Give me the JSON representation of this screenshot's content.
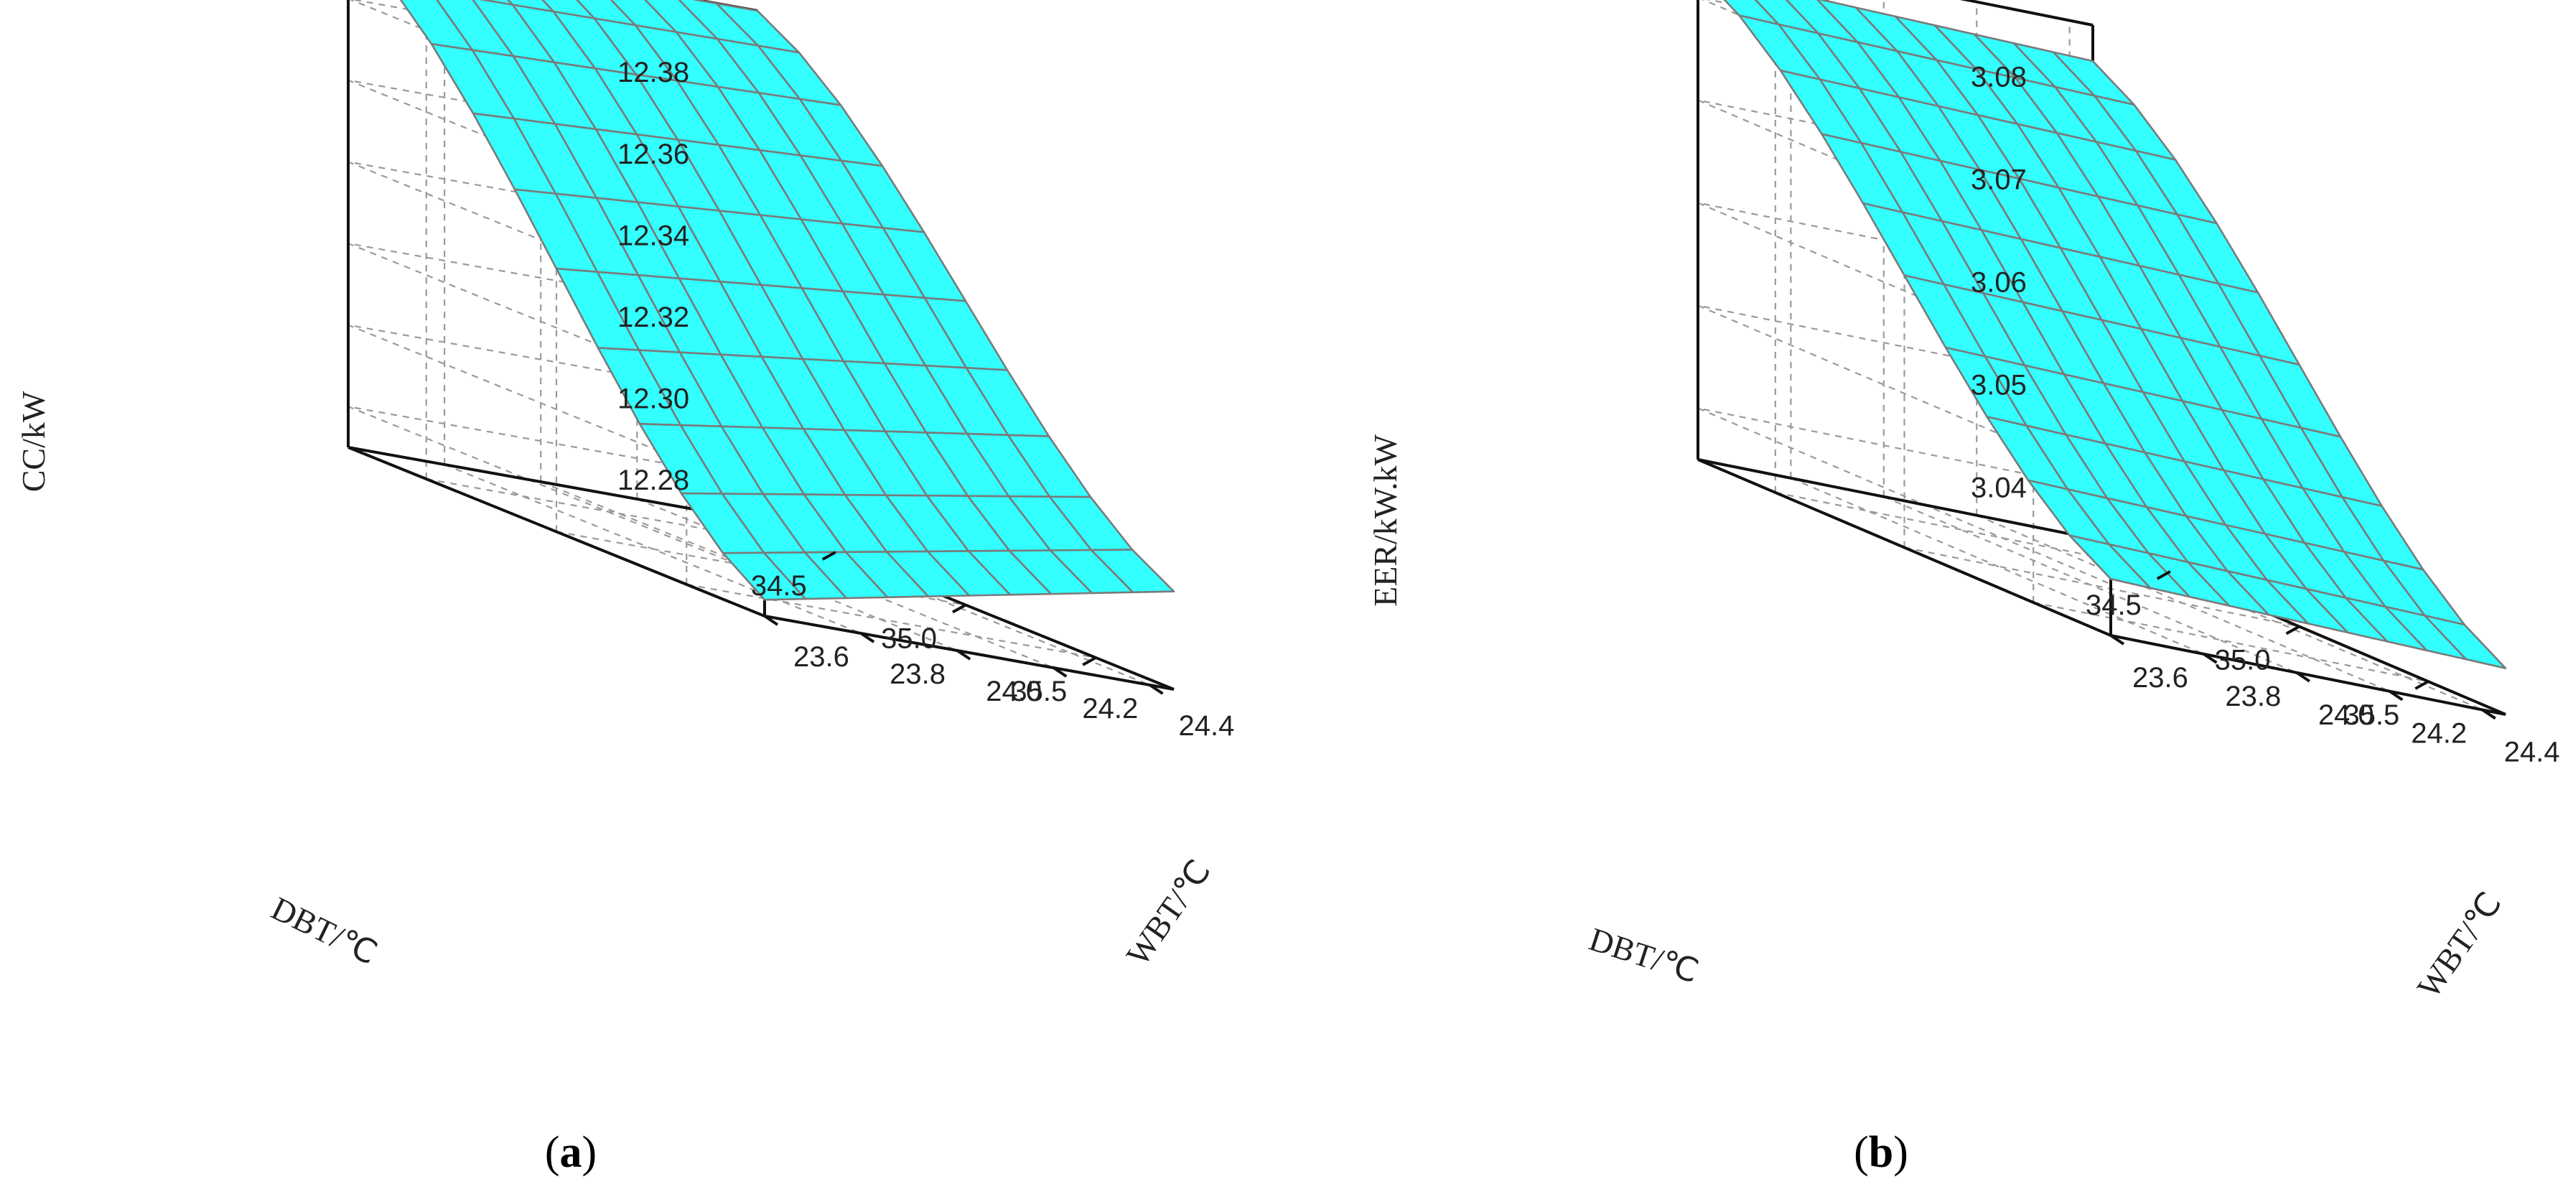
{
  "chart_data": [
    {
      "type": "surface",
      "panel_label": "a",
      "x_axis": {
        "label": "DBT/℃",
        "ticks": [
          "34.5",
          "35.0",
          "35.5"
        ],
        "range": [
          34.2,
          35.8
        ]
      },
      "y_axis": {
        "label": "WBT/℃",
        "ticks": [
          "23.6",
          "23.8",
          "24.0",
          "24.2",
          "24.4"
        ],
        "range": [
          23.6,
          24.45
        ]
      },
      "z_axis": {
        "label": "CC/kW",
        "ticks": [
          "12.28",
          "12.30",
          "12.32",
          "12.34",
          "12.36",
          "12.38"
        ],
        "range": [
          12.27,
          12.395
        ]
      },
      "grid": true,
      "surface_color": "#33ffff",
      "surface": {
        "x": [
          34.2,
          35.8
        ],
        "y": [
          23.6,
          24.45
        ],
        "z_corners": {
          "x0y0": 12.395,
          "x0y1": 12.395,
          "x1y0": 12.274,
          "x1y1": 12.294
        }
      }
    },
    {
      "type": "surface",
      "panel_label": "b",
      "x_axis": {
        "label": "DBT/℃",
        "ticks": [
          "34.5",
          "35.0",
          "35.5"
        ],
        "range": [
          34.2,
          35.8
        ]
      },
      "y_axis": {
        "label": "WBT/℃",
        "ticks": [
          "23.6",
          "23.8",
          "24.0",
          "24.2",
          "24.4"
        ],
        "range": [
          23.6,
          24.45
        ]
      },
      "z_axis": {
        "label": "EER/kW.kW",
        "ticks": [
          "3.04",
          "3.05",
          "3.06",
          "3.07",
          "3.08"
        ],
        "range": [
          3.035,
          3.085
        ]
      },
      "grid": true,
      "surface_color": "#33ffff",
      "surface": {
        "x": [
          34.2,
          35.8
        ],
        "y": [
          23.6,
          24.45
        ],
        "z_corners": {
          "x0y0": 3.0825,
          "x0y1": 3.0815,
          "x1y0": 3.0405,
          "x1y1": 3.0395
        }
      }
    }
  ]
}
